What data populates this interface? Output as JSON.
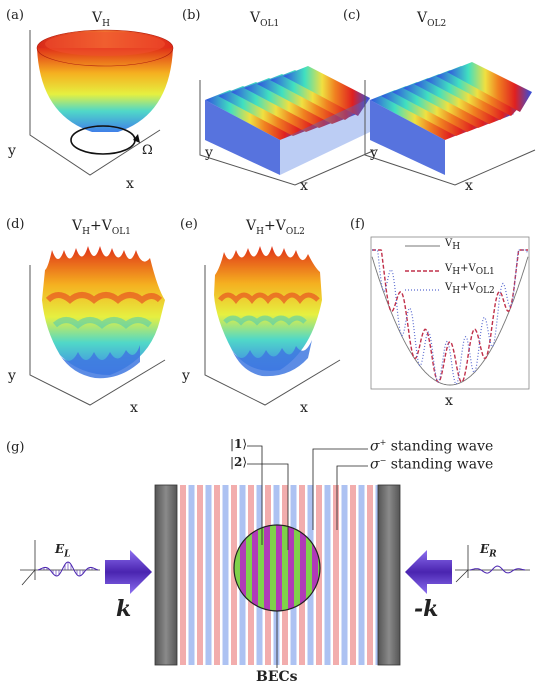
{
  "panels": {
    "a": {
      "label": "(a)",
      "title": "V",
      "sub": "H",
      "omega": "Ω",
      "x": "x",
      "y": "y"
    },
    "b": {
      "label": "(b)",
      "title": "V",
      "sub": "OL1",
      "x": "x",
      "y": "y"
    },
    "c": {
      "label": "(c)",
      "title": "V",
      "sub": "OL2",
      "x": "x",
      "y": "y"
    },
    "d": {
      "label": "(d)",
      "t1": "V",
      "s1": "H",
      "plus": "+V",
      "s2": "OL1",
      "x": "x",
      "y": "y"
    },
    "e": {
      "label": "(e)",
      "t1": "V",
      "s1": "H",
      "plus": "+V",
      "s2": "OL2",
      "x": "x",
      "y": "y"
    },
    "f": {
      "label": "(f)",
      "x": "x",
      "legend": [
        {
          "t": "V",
          "s": "H",
          "extra": "",
          "s2": "",
          "color": "#777777",
          "dash": "none"
        },
        {
          "t": "V",
          "s": "H",
          "extra": "+V",
          "s2": "OL1",
          "color": "#c0304a",
          "dash": "4,2"
        },
        {
          "t": "V",
          "s": "H",
          "extra": "+V",
          "s2": "OL2",
          "color": "#5a6bd0",
          "dash": "1,2"
        }
      ]
    }
  },
  "g": {
    "label": "(g)",
    "state1": "1",
    "state2": "2",
    "sigma_plus": "σ",
    "sigma_plus_sup": "+",
    "sigma_minus": "σ",
    "sigma_minus_sup": "−",
    "standing_wave": "standing wave",
    "el": "E",
    "el_sub": "L",
    "er": "E",
    "er_sub": "R",
    "k_left": "k",
    "k_right": "-k",
    "becs": "BECs"
  },
  "colors": {
    "arrow": "#5b2fb5",
    "mirror": "#6e6e6e",
    "bec_green": "#7fd14b",
    "bec_purple": "#b03ab8",
    "stripe_red": "#e86a6a",
    "stripe_blue": "#6a8fe8"
  }
}
